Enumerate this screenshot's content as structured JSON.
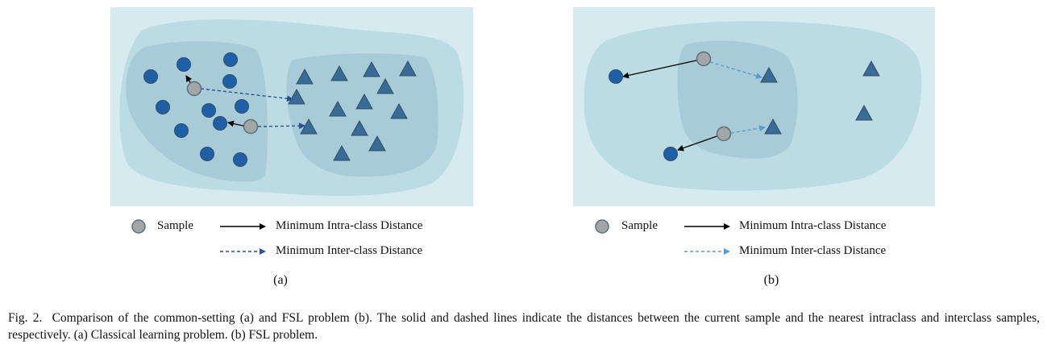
{
  "legend": {
    "sample": "Sample",
    "intra": "Minimum Intra-class Distance",
    "inter": "Minimum Inter-class Distance"
  },
  "subfigures": [
    {
      "label": "(a)"
    },
    {
      "label": "(b)"
    }
  ],
  "caption": {
    "figure_label": "Fig. 2.",
    "text": "Comparison of the common-setting (a) and FSL problem (b). The solid and dashed lines indicate the distances between the current sample and the nearest intraclass and interclass samples, respectively. (a) Classical learning problem. (b) FSL problem."
  },
  "colors": {
    "background": "#d6ebf0",
    "outer_region": "#bcdce4",
    "inner_region": "#a8ccd7",
    "circle": "#1f5fa8",
    "triangle": "#3a6a96",
    "sample": "#a3a6a8",
    "inter_arrow_a": "#2a4f9a",
    "inter_arrow_b": "#5b9bd5",
    "intra_arrow": "#000000"
  }
}
